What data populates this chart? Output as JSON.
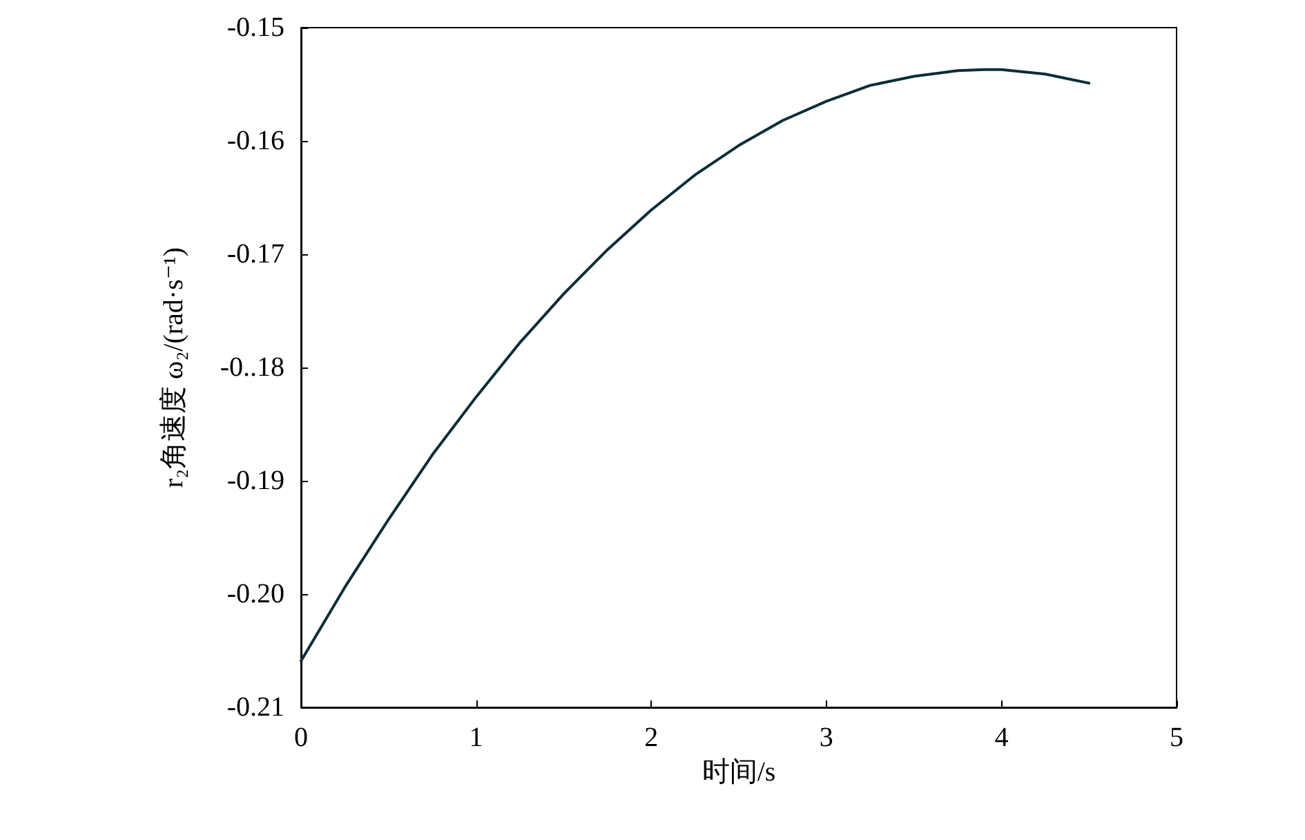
{
  "chart_data": {
    "type": "line",
    "xlabel": "时间/s",
    "ylabel": "r₂角速度 ω₂/(rad·s⁻¹)",
    "x": [
      0,
      0.25,
      0.5,
      0.75,
      1,
      1.25,
      1.5,
      1.75,
      2,
      2.25,
      2.5,
      2.75,
      3,
      3.25,
      3.5,
      3.75,
      3.9,
      4,
      4.25,
      4.5
    ],
    "series": [
      {
        "color": "#0b2d38",
        "values": [
          -0.2059,
          -0.1994,
          -0.1934,
          -0.1877,
          -0.1826,
          -0.1778,
          -0.1735,
          -0.1696,
          -0.1661,
          -0.163,
          -0.1604,
          -0.1582,
          -0.1565,
          -0.1551,
          -0.1543,
          -0.1538,
          -0.1537,
          -0.1537,
          -0.1541,
          -0.1549
        ]
      }
    ],
    "xlim": [
      0,
      5
    ],
    "xticks": [
      0,
      1,
      2,
      3,
      4,
      5
    ],
    "ylim": [
      -0.21,
      -0.15
    ],
    "yticks": [
      -0.21,
      {
        "value": -0.2,
        "label": "-0.20"
      },
      -0.19,
      {
        "value": -0.18,
        "label": "-0..18"
      },
      -0.17,
      -0.16,
      -0.15
    ],
    "grid": false,
    "marker": "none",
    "line_style": "solid"
  }
}
